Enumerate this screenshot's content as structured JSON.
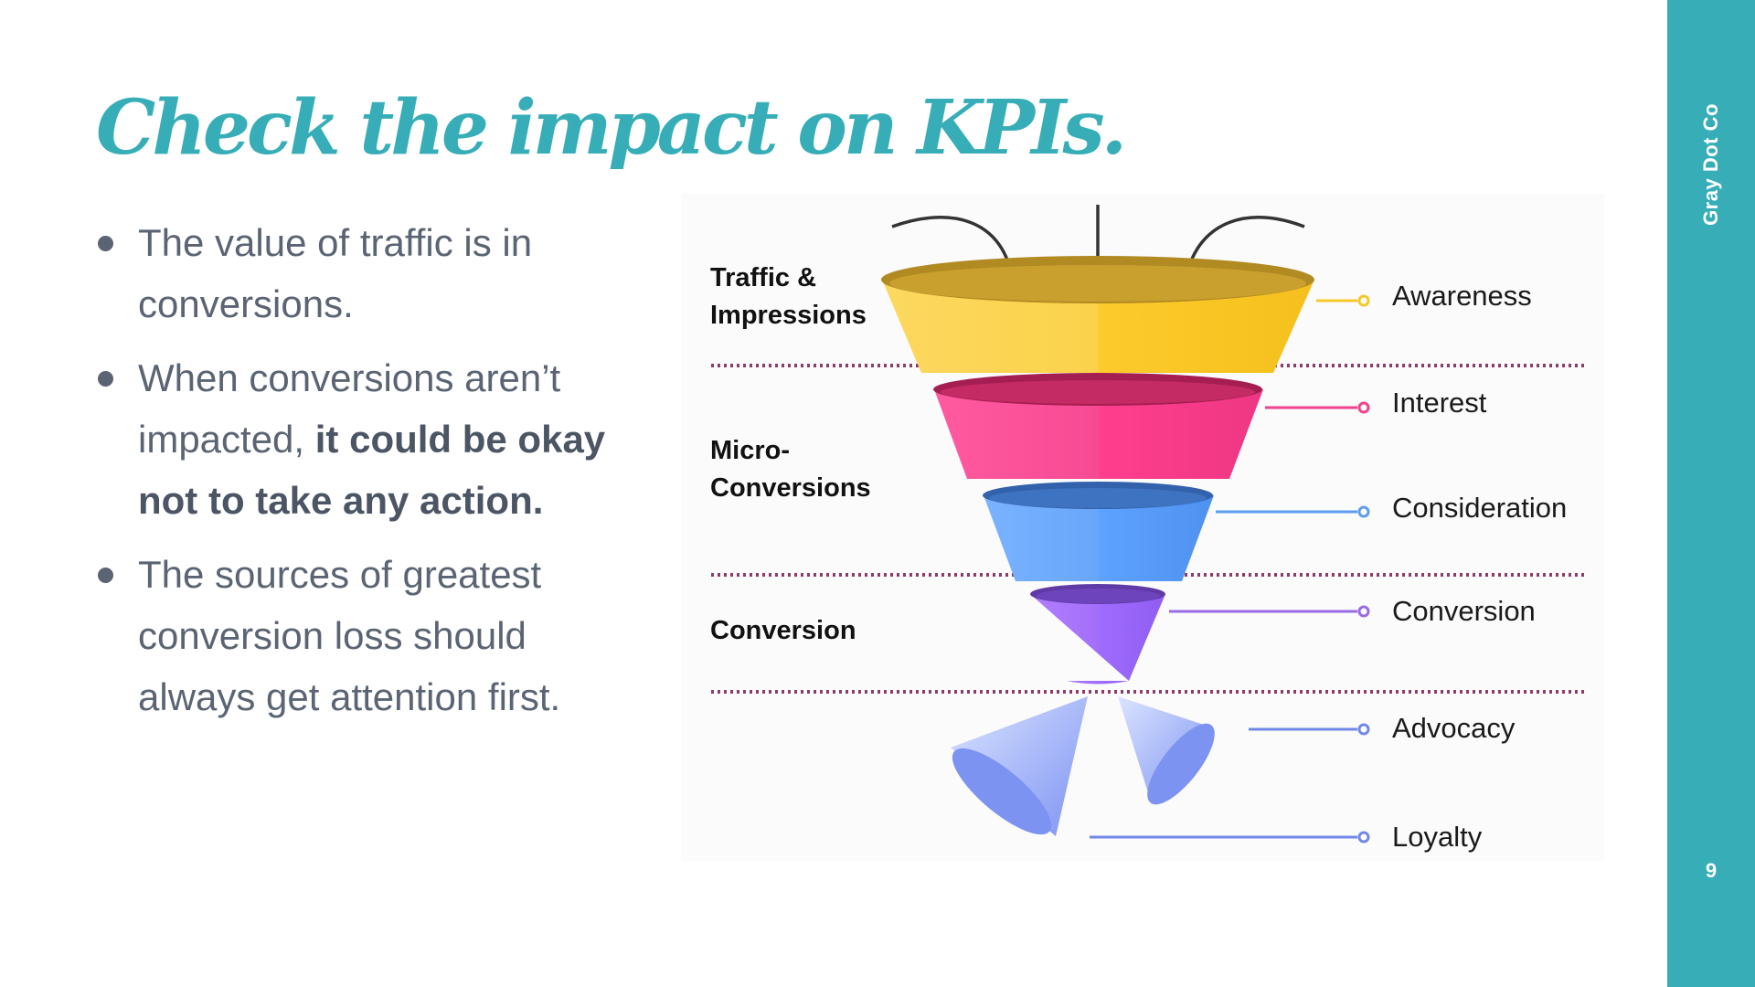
{
  "title": "Check the impact on KPIs.",
  "bullets": [
    {
      "text": "The value of traffic is in conversions.",
      "bold": ""
    },
    {
      "text": "When conversions aren’t impacted, ",
      "bold": "it could be okay not to take any action."
    },
    {
      "text": "The sources of greatest conversion loss should always get attention first.",
      "bold": ""
    }
  ],
  "funnel": {
    "stages": [
      {
        "label": "Traffic & Impressions"
      },
      {
        "label": "Micro-Conversions"
      },
      {
        "label": "Conversion"
      }
    ],
    "levels": [
      {
        "label": "Awareness",
        "color": "#f6c928"
      },
      {
        "label": "Interest",
        "color": "#f0428e"
      },
      {
        "label": "Consideration",
        "color": "#5b9cf2"
      },
      {
        "label": "Conversion",
        "color": "#9a6ae6"
      },
      {
        "label": "Advocacy",
        "color": "#7088e8"
      },
      {
        "label": "Loyalty",
        "color": "#7088e8"
      }
    ],
    "divider_color": "#8a3d6b"
  },
  "sidebar": {
    "brand": "Gray Dot Co",
    "page_number": "9",
    "color": "#37aeb7"
  }
}
